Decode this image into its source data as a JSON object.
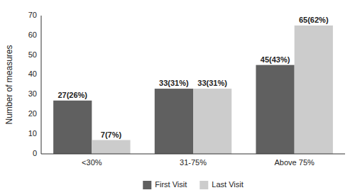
{
  "chart_data": {
    "type": "bar",
    "categories": [
      "<30%",
      "31-75%",
      "Above 75%"
    ],
    "series": [
      {
        "name": "First Visit",
        "color": "#606060",
        "values": [
          27,
          33,
          45
        ],
        "value_labels": [
          "27(26%)",
          "33(31%)",
          "45(43%)"
        ]
      },
      {
        "name": "Last Visit",
        "color": "#cccccc",
        "values": [
          7,
          33,
          65
        ],
        "value_labels": [
          "7(7%)",
          "33(31%)",
          "65(62%)"
        ]
      }
    ],
    "y_label": "Number of measures",
    "ylim": [
      0,
      70
    ],
    "yticks": [
      0,
      10,
      20,
      30,
      40,
      50,
      60,
      70
    ],
    "grid": false,
    "legend": "bottom",
    "data_labels": true
  }
}
